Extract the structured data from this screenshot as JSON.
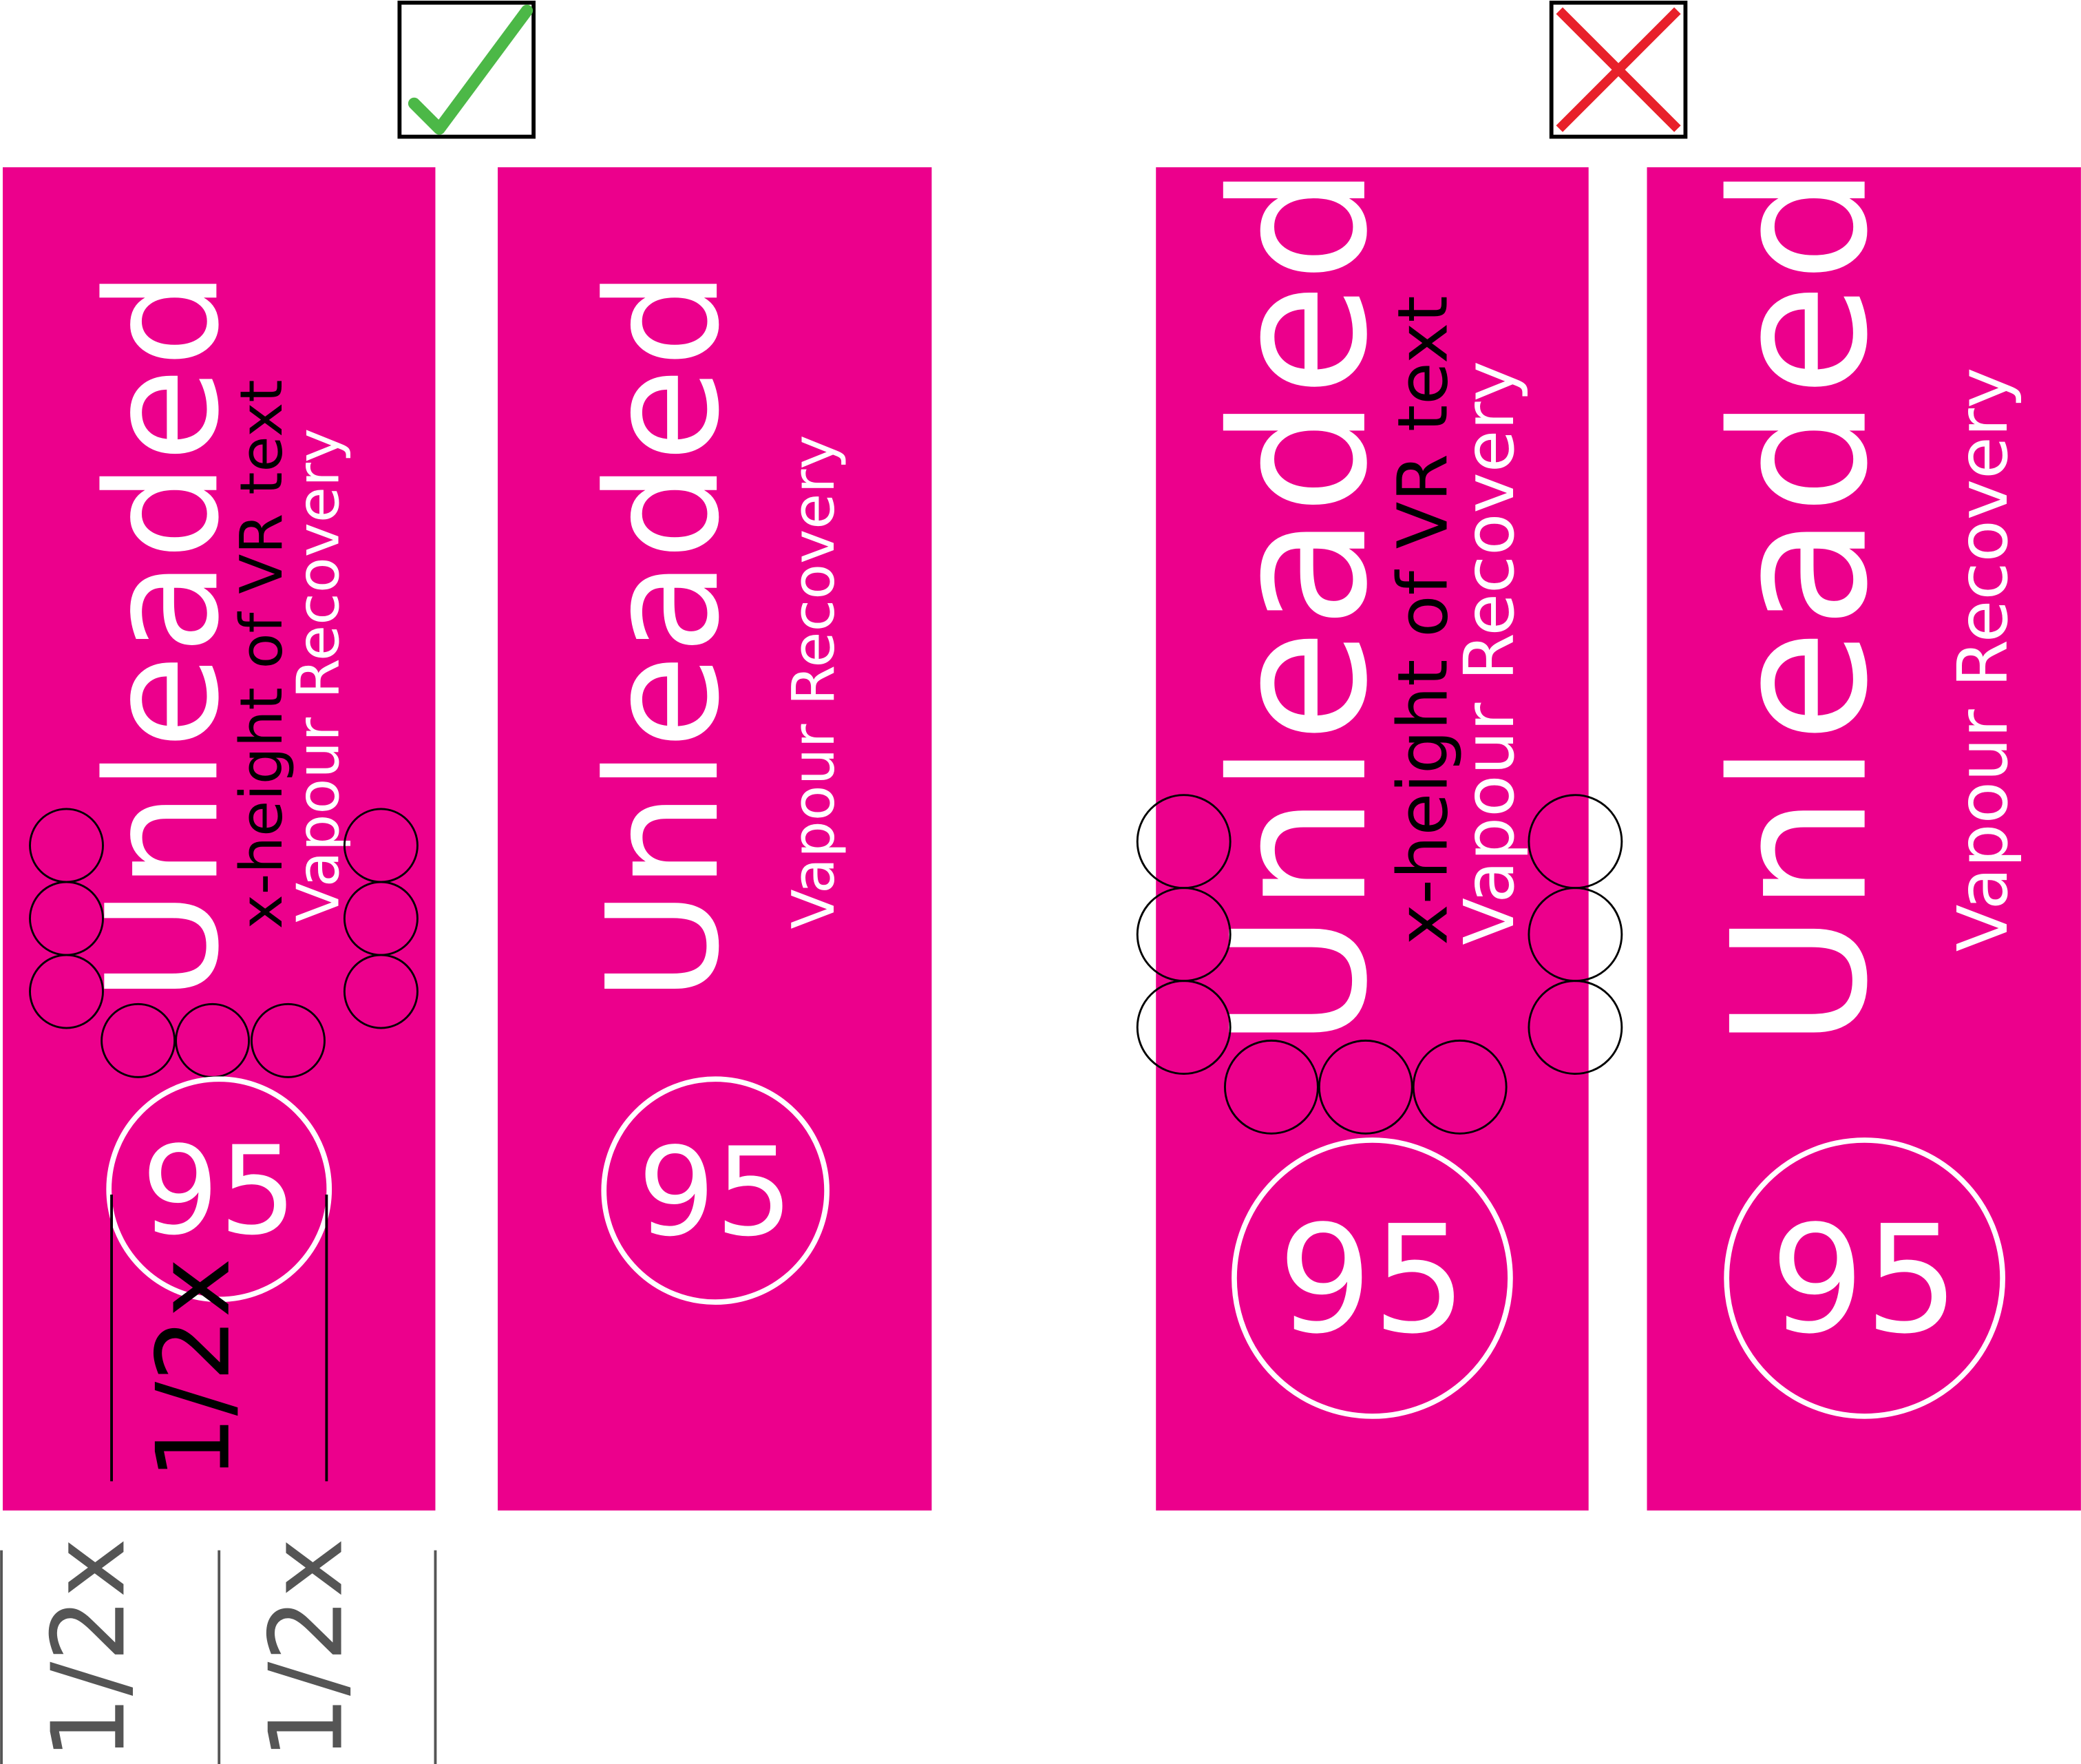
{
  "colors": {
    "panel": "#ec008c",
    "text": "#ffffff",
    "guide": "#000000",
    "dim": "#555555",
    "check": "#4cb847",
    "cross": "#e8202a"
  },
  "icons": {
    "correct": "check-icon",
    "incorrect": "cross-icon"
  },
  "labels": {
    "fuel": "Unleaded",
    "vapour": "Vapour Recovery",
    "octane": "95",
    "guide_x_height": "x-height of VR text",
    "half_x": "1/2x"
  },
  "panels": [
    {
      "id": "correct-annotated",
      "example": "correct",
      "annotated": true
    },
    {
      "id": "correct-clean",
      "example": "correct",
      "annotated": false
    },
    {
      "id": "incorrect-annotated",
      "example": "incorrect",
      "annotated": true
    },
    {
      "id": "incorrect-clean",
      "example": "incorrect",
      "annotated": false
    }
  ]
}
